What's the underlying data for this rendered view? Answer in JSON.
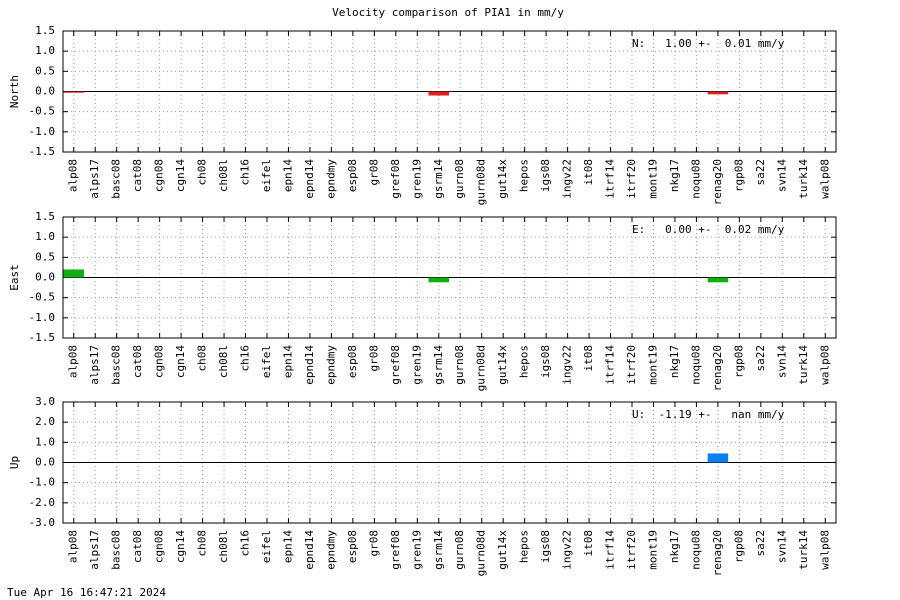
{
  "title": "Velocity comparison of PIA1 in mm/y",
  "timestamp": "Tue Apr 16 16:47:21 2024",
  "chart_data": [
    {
      "type": "bar",
      "ylabel": "North",
      "annotation": "N:   1.00 +-  0.01 mm/y",
      "color": "#e02020",
      "grid": true,
      "categories": [
        "alp08",
        "alps17",
        "basc08",
        "cat08",
        "cgn08",
        "cgn14",
        "ch08",
        "ch08l",
        "ch16",
        "eifel",
        "epn14",
        "epnd14",
        "epndmy",
        "esp08",
        "gr08",
        "gref08",
        "gren19",
        "gsrm14",
        "gurn08",
        "gurn08d",
        "gut14x",
        "hepos",
        "igs08",
        "ingv22",
        "it08",
        "itrf14",
        "itrf20",
        "mont19",
        "nkg17",
        "noqu08",
        "renag20",
        "rgp08",
        "sa22",
        "svn14",
        "turk14",
        "walp08"
      ],
      "values": [
        -0.03,
        null,
        null,
        null,
        null,
        null,
        null,
        null,
        null,
        null,
        null,
        null,
        null,
        null,
        null,
        null,
        null,
        -0.1,
        null,
        null,
        null,
        null,
        null,
        null,
        null,
        null,
        null,
        null,
        null,
        null,
        -0.07,
        null,
        null,
        null,
        null,
        null
      ],
      "ylim": [
        -1.5,
        1.5
      ],
      "yticks": [
        1.5,
        {
          "value": 1,
          "label": "1.0"
        },
        0.5,
        {
          "value": 0,
          "label": "0.0"
        },
        -0.5,
        {
          "value": -1,
          "label": "-1.0"
        },
        -1.5
      ]
    },
    {
      "type": "bar",
      "ylabel": "East",
      "annotation": "E:   0.00 +-  0.02 mm/y",
      "color": "#10b010",
      "grid": true,
      "categories": [
        "alp08",
        "alps17",
        "basc08",
        "cat08",
        "cgn08",
        "cgn14",
        "ch08",
        "ch08l",
        "ch16",
        "eifel",
        "epn14",
        "epnd14",
        "epndmy",
        "esp08",
        "gr08",
        "gref08",
        "gren19",
        "gsrm14",
        "gurn08",
        "gurn08d",
        "gut14x",
        "hepos",
        "igs08",
        "ingv22",
        "it08",
        "itrf14",
        "itrf20",
        "mont19",
        "nkg17",
        "noqu08",
        "renag20",
        "rgp08",
        "sa22",
        "svn14",
        "turk14",
        "walp08"
      ],
      "values": [
        0.2,
        null,
        null,
        null,
        null,
        null,
        null,
        null,
        null,
        null,
        null,
        null,
        null,
        null,
        null,
        null,
        null,
        -0.12,
        null,
        null,
        null,
        null,
        null,
        null,
        null,
        null,
        null,
        null,
        null,
        null,
        -0.12,
        null,
        null,
        null,
        null,
        null
      ],
      "ylim": [
        -1.5,
        1.5
      ],
      "yticks": [
        1.5,
        {
          "value": 1,
          "label": "1.0"
        },
        0.5,
        {
          "value": 0,
          "label": "0.0"
        },
        -0.5,
        {
          "value": -1,
          "label": "-1.0"
        },
        -1.5
      ]
    },
    {
      "type": "bar",
      "ylabel": "Up",
      "annotation": "U:  -1.19 +-   nan mm/y",
      "color": "#0a80f0",
      "grid": true,
      "categories": [
        "alp08",
        "alps17",
        "basc08",
        "cat08",
        "cgn08",
        "cgn14",
        "ch08",
        "ch08l",
        "ch16",
        "eifel",
        "epn14",
        "epnd14",
        "epndmy",
        "esp08",
        "gr08",
        "gref08",
        "gren19",
        "gsrm14",
        "gurn08",
        "gurn08d",
        "gut14x",
        "hepos",
        "igs08",
        "ingv22",
        "it08",
        "itrf14",
        "itrf20",
        "mont19",
        "nkg17",
        "noqu08",
        "renag20",
        "rgp08",
        "sa22",
        "svn14",
        "turk14",
        "walp08"
      ],
      "values": [
        null,
        null,
        null,
        null,
        null,
        null,
        null,
        null,
        null,
        null,
        null,
        null,
        null,
        null,
        null,
        null,
        null,
        null,
        null,
        null,
        null,
        null,
        null,
        null,
        null,
        null,
        null,
        null,
        null,
        null,
        0.45,
        null,
        null,
        null,
        null,
        null
      ],
      "ylim": [
        -3,
        3
      ],
      "yticks": [
        {
          "value": 3,
          "label": "3.0"
        },
        {
          "value": 2,
          "label": "2.0"
        },
        {
          "value": 1,
          "label": "1.0"
        },
        {
          "value": 0,
          "label": "0.0"
        },
        {
          "value": -1,
          "label": "-1.0"
        },
        {
          "value": -2,
          "label": "-2.0"
        },
        {
          "value": -3,
          "label": "-3.0"
        }
      ]
    }
  ]
}
